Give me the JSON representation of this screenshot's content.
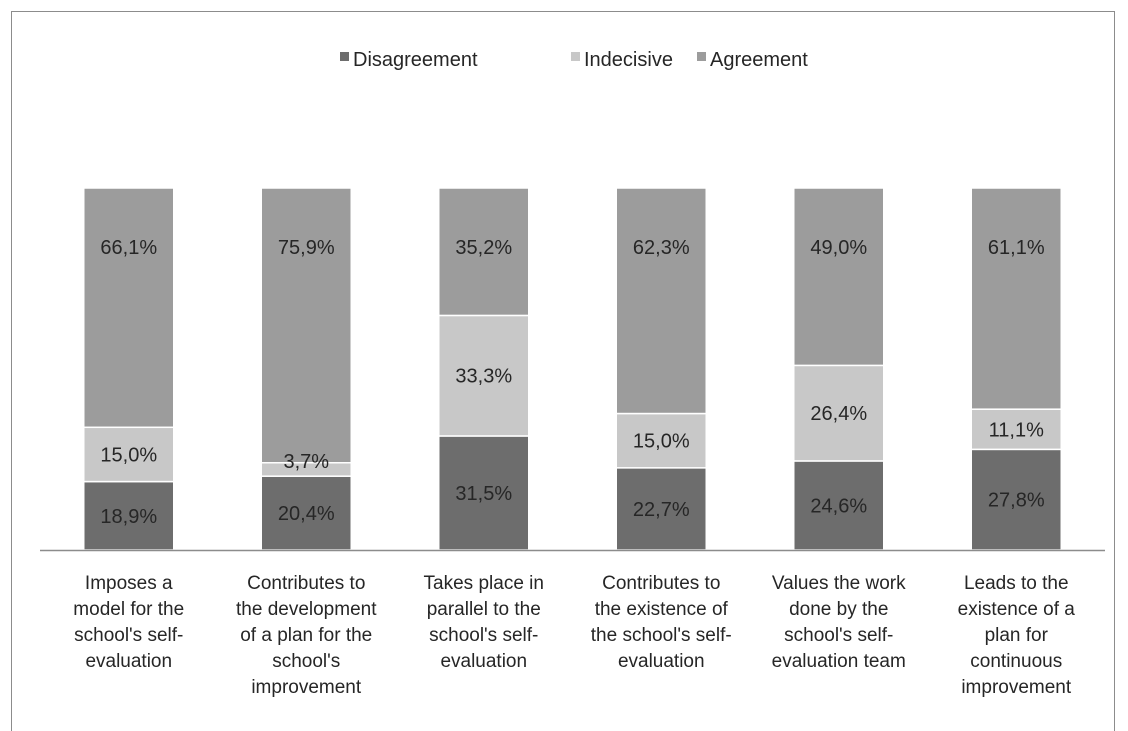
{
  "chart_data": {
    "type": "bar",
    "stacked": true,
    "normalized": true,
    "categories": [
      [
        "Imposes a",
        "model for the",
        "school's self-",
        "evaluation"
      ],
      [
        "Contributes to",
        "the development",
        "of a plan for the",
        "school's",
        "improvement"
      ],
      [
        "Takes place in",
        "parallel to the",
        "school's self-",
        "evaluation"
      ],
      [
        "Contributes to",
        "the existence of",
        "the school's self-",
        "evaluation"
      ],
      [
        "Values the work",
        "done by the",
        "school's self-",
        "evaluation team"
      ],
      [
        "Leads to the",
        "existence of a",
        "plan for",
        "continuous",
        "improvement"
      ]
    ],
    "series": [
      {
        "name": "Disagreement",
        "color": "#6d6d6d",
        "values": [
          18.9,
          20.4,
          31.5,
          22.7,
          24.6,
          27.8
        ],
        "labels": [
          "18,9%",
          "20,4%",
          "31,5%",
          "22,7%",
          "24,6%",
          "27,8%"
        ]
      },
      {
        "name": "Indecisive",
        "color": "#c8c8c8",
        "values": [
          15.0,
          3.7,
          33.3,
          15.0,
          26.4,
          11.1
        ],
        "labels": [
          "15,0%",
          "3,7%",
          "33,3%",
          "15,0%",
          "26,4%",
          "11,1%"
        ]
      },
      {
        "name": "Agreement",
        "color": "#9c9c9c",
        "values": [
          66.1,
          75.9,
          35.2,
          62.3,
          49.0,
          61.1
        ],
        "labels": [
          "66,1%",
          "75,9%",
          "35,2%",
          "62,3%",
          "49,0%",
          "61,1%"
        ]
      }
    ],
    "legend_position": "top",
    "grid": false
  }
}
